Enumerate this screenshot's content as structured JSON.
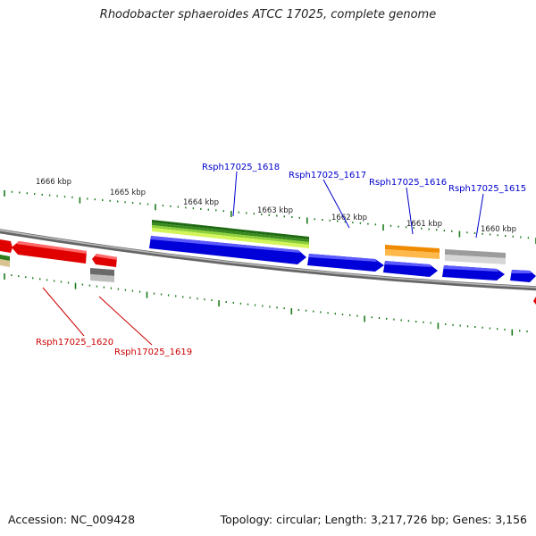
{
  "title": "Rhodobacter sphaeroides ATCC 17025, complete genome",
  "footer": {
    "accession": "Accession: NC_009428",
    "topology": "Topology: circular; Length: 3,217,726 bp; Genes: 3,156"
  },
  "scale_labels": [
    "1666 kbp",
    "1665 kbp",
    "1664 kbp",
    "1663 kbp",
    "1662 kbp",
    "1661 kbp",
    "1660 kbp"
  ],
  "gene_labels": {
    "g1618": "Rsph17025_1618",
    "g1617": "Rsph17025_1617",
    "g1616": "Rsph17025_1616",
    "g1615": "Rsph17025_1615",
    "g1620": "Rsph17025_1620",
    "g1619": "Rsph17025_1619"
  },
  "colors": {
    "forward_label": "#0000cc",
    "reverse_label": "#cc0000",
    "cds_blue": "#0000e0",
    "cds_red": "#ee0000",
    "green": "#3a8a20",
    "lightgreen": "#c8f040",
    "orange": "#ff9900",
    "gray": "#bbbbbb",
    "darkgray": "#666666",
    "tick": "#1a7a1a",
    "backbone": "#888888"
  }
}
